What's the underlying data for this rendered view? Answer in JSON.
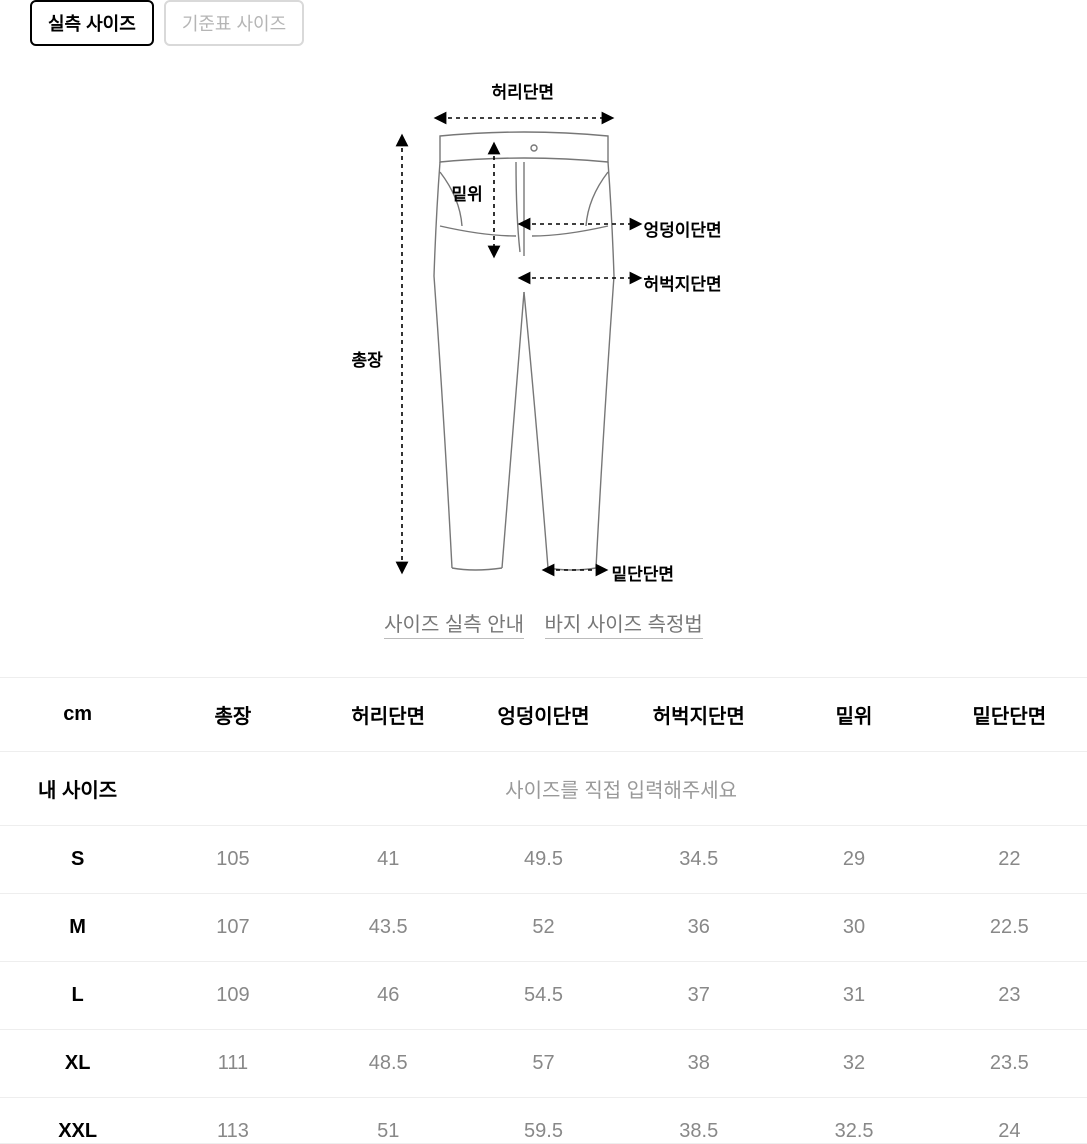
{
  "tabs": {
    "active": "실측 사이즈",
    "inactive": "기준표 사이즈"
  },
  "diagram": {
    "labels": {
      "waist": "허리단면",
      "rise": "밑위",
      "hip": "엉덩이단면",
      "thigh": "허벅지단면",
      "length": "총장",
      "hem": "밑단단면"
    }
  },
  "links": {
    "guide": "사이즈 실측 안내",
    "howto": "바지 사이즈 측정법"
  },
  "table": {
    "unit": "cm",
    "columns": [
      "총장",
      "허리단면",
      "엉덩이단면",
      "허벅지단면",
      "밑위",
      "밑단단면"
    ],
    "mysize_label": "내 사이즈",
    "mysize_placeholder": "사이즈를 직접 입력해주세요",
    "rows": [
      {
        "size": "S",
        "values": [
          "105",
          "41",
          "49.5",
          "34.5",
          "29",
          "22"
        ]
      },
      {
        "size": "M",
        "values": [
          "107",
          "43.5",
          "52",
          "36",
          "30",
          "22.5"
        ]
      },
      {
        "size": "L",
        "values": [
          "109",
          "46",
          "54.5",
          "37",
          "31",
          "23"
        ]
      },
      {
        "size": "XL",
        "values": [
          "111",
          "48.5",
          "57",
          "38",
          "32",
          "23.5"
        ]
      },
      {
        "size": "XXL",
        "values": [
          "113",
          "51",
          "59.5",
          "38.5",
          "32.5",
          "24"
        ]
      }
    ]
  },
  "style": {
    "outline_color": "#777",
    "outline_width": 1.4,
    "dash": "4 4",
    "arrow_color": "#000"
  }
}
